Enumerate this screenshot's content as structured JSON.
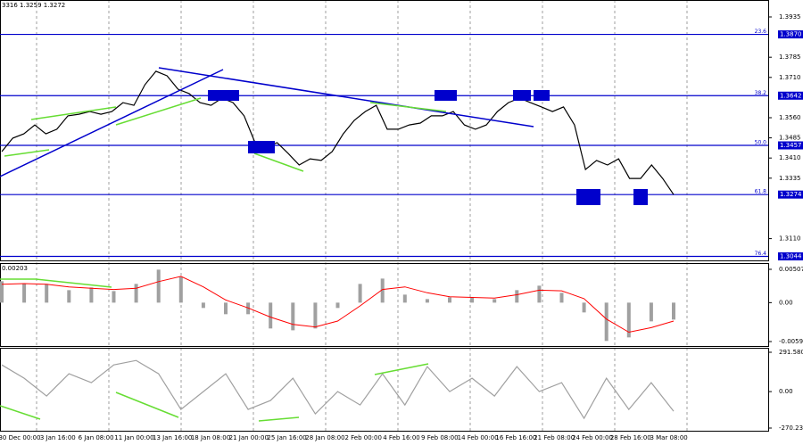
{
  "header": "3316 1.3259 1.3272",
  "time_axis": [
    "30 Dec 00:00",
    "3 Jan 16:00",
    "6 Jan 08:00",
    "11 Jan 00:00",
    "13 Jan 16:00",
    "18 Jan 08:00",
    "21 Jan 00:00",
    "25 Jan 16:00",
    "28 Jan 08:00",
    "2 Feb 00:00",
    "4 Feb 16:00",
    "9 Feb 08:00",
    "14 Feb 00:00",
    "16 Feb 16:00",
    "21 Feb 08:00",
    "24 Feb 00:00",
    "28 Feb 16:00",
    "3 Mar 08:00"
  ],
  "chart_data": [
    {
      "type": "line",
      "color": "#000000",
      "values": [
        1.3434,
        1.3484,
        1.35,
        1.3533,
        1.35,
        1.3517,
        1.3567,
        1.3573,
        1.3583,
        1.3573,
        1.3583,
        1.3616,
        1.3606,
        1.3683,
        1.3733,
        1.3716,
        1.3666,
        1.365,
        1.3616,
        1.3606,
        1.3633,
        1.3616,
        1.3567,
        1.3467,
        1.345,
        1.3467,
        1.3427,
        1.3384,
        1.3407,
        1.3401,
        1.3434,
        1.35,
        1.355,
        1.3583,
        1.3606,
        1.3517,
        1.3517,
        1.3533,
        1.354,
        1.3567,
        1.3567,
        1.3583,
        1.3533,
        1.3517,
        1.3533,
        1.3583,
        1.3616,
        1.3633,
        1.3616,
        1.36,
        1.3583,
        1.36,
        1.3533,
        1.3367,
        1.3401,
        1.3384,
        1.3407,
        1.3334,
        1.3334,
        1.3384,
        1.3334,
        1.3274
      ],
      "ylim": [
        1.3029,
        1.3998
      ],
      "yticks": [
        1.3935,
        1.3785,
        {
          "value": 1.371,
          "label": "1.3710"
        },
        {
          "value": 1.356,
          "label": "1.3560"
        },
        1.3485,
        {
          "value": 1.341,
          "label": "1.3410"
        },
        1.3335,
        {
          "value": 1.311,
          "label": "1.3110"
        }
      ],
      "levels": [
        {
          "value": 1.387,
          "label": "1.3870",
          "ratio": "23.6"
        },
        {
          "value": 1.3642,
          "label": "1.3642",
          "ratio": "38.2"
        },
        {
          "value": 1.3457,
          "label": "1.3457",
          "ratio": "50.0"
        },
        {
          "value": 1.3274,
          "label": "1.3274",
          "ratio": "61.8"
        },
        {
          "value": 1.3044,
          "label": "1.3044",
          "ratio": "76.4"
        }
      ]
    },
    {
      "type": "bar",
      "title": "0.00203",
      "color": "#a0a0a0",
      "signal_color": "#ff0000",
      "values": [
        0.00326,
        0.00285,
        0.00285,
        0.0019,
        0.00231,
        0.00176,
        0.00285,
        0.00502,
        0.00393,
        -0.00081,
        -0.00176,
        -0.00176,
        -0.00393,
        -0.00421,
        -0.00393,
        -0.00081,
        0.00285,
        0.00366,
        0.00122,
        0.00054,
        0.00081,
        0.00081,
        0.00054,
        0.0019,
        0.00258,
        0.00149,
        -0.00149,
        -0.00583,
        -0.00529,
        -0.00285,
        -0.00258
      ],
      "signal": [
        0.0028,
        0.0029,
        0.0028,
        0.0024,
        0.0022,
        0.002,
        0.0022,
        0.0032,
        0.004,
        0.0024,
        0.0004,
        -0.0008,
        -0.0022,
        -0.0033,
        -0.0037,
        -0.0028,
        -0.0005,
        0.002,
        0.0024,
        0.0015,
        0.0009,
        0.0008,
        0.0007,
        0.0012,
        0.0019,
        0.0018,
        0.0006,
        -0.0025,
        -0.0045,
        -0.0038,
        -0.0028
      ],
      "ylim": [
        -0.0066,
        0.00602
      ],
      "yticks": [
        0.00507,
        {
          "value": 0,
          "label": "0.00"
        },
        -0.00592
      ]
    },
    {
      "type": "line",
      "color": "#a0a0a0",
      "values": [
        198,
        99,
        -33,
        132,
        66,
        198,
        231,
        132,
        -132,
        0,
        132,
        -132,
        -66,
        99,
        -165,
        0,
        -99,
        132,
        -99,
        185,
        0,
        99,
        -33,
        185,
        0,
        66,
        -198,
        99,
        -132,
        66,
        -145
      ],
      "ylim": [
        -290,
        324.6
      ],
      "yticks": [
        291.5808,
        {
          "value": 0,
          "label": "0.00"
        },
        -270.237
      ]
    }
  ]
}
